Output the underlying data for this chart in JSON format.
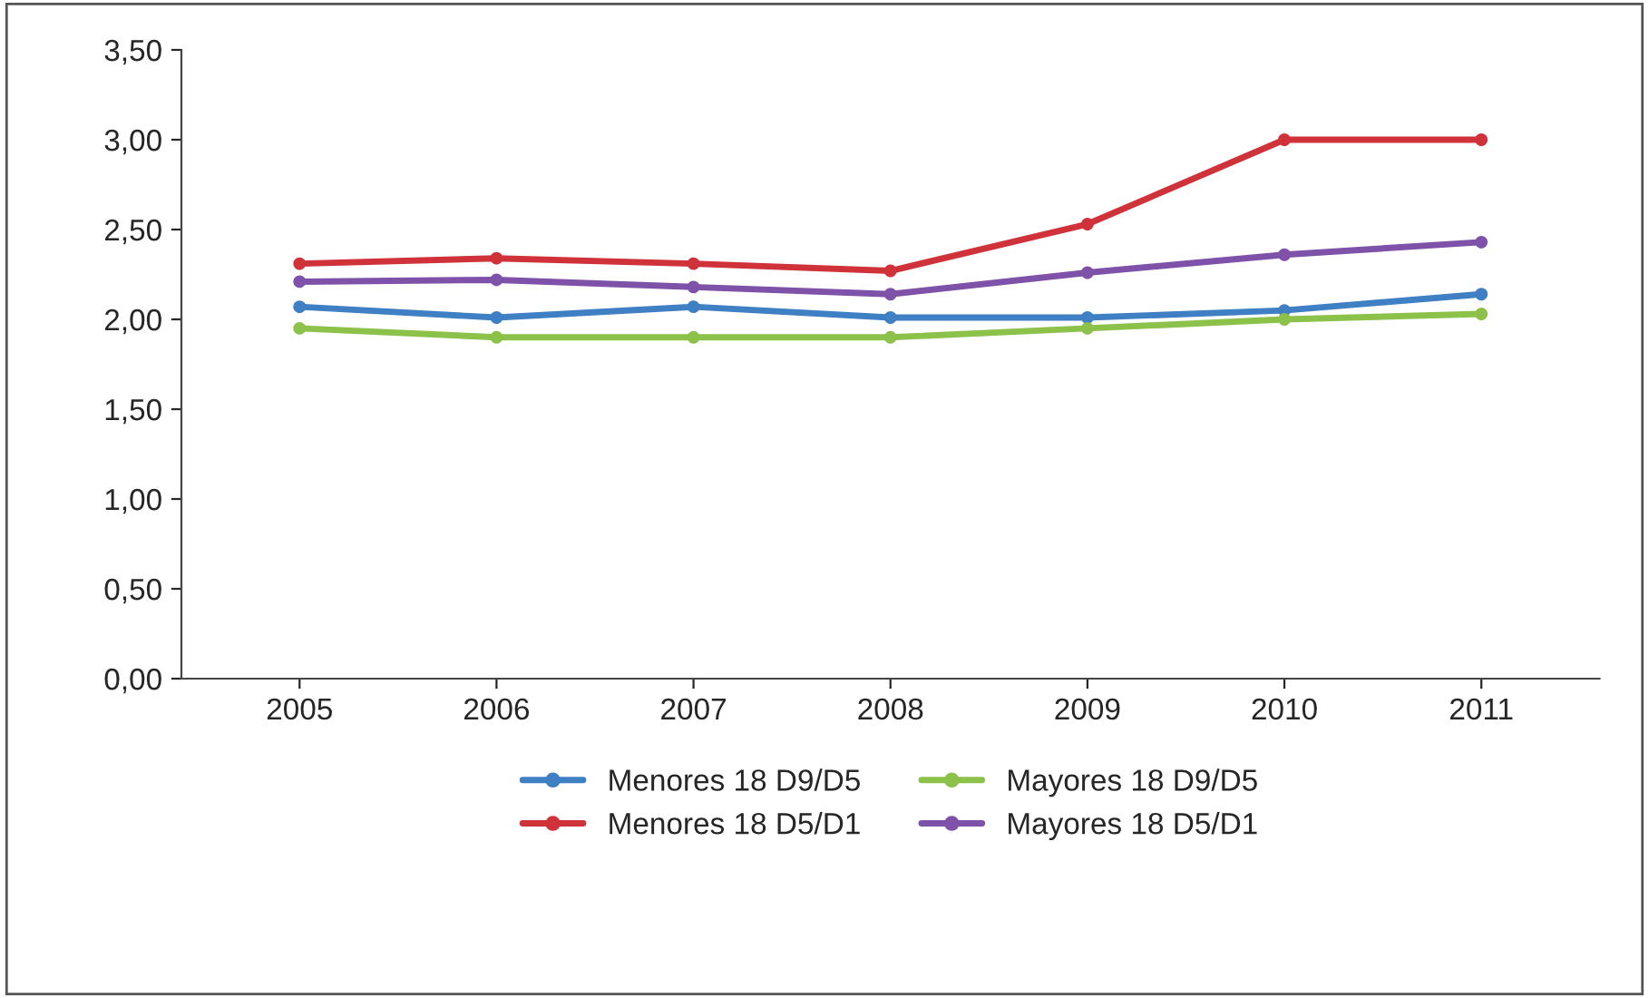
{
  "chart_data": {
    "type": "line",
    "categories": [
      "2005",
      "2006",
      "2007",
      "2008",
      "2009",
      "2010",
      "2011"
    ],
    "series": [
      {
        "name": "Menores 18 D9/D5",
        "color": "#3f7fc4",
        "values": [
          2.07,
          2.01,
          2.07,
          2.01,
          2.01,
          2.05,
          2.14
        ]
      },
      {
        "name": "Menores 18 D5/D1",
        "color": "#d0323a",
        "values": [
          2.31,
          2.34,
          2.31,
          2.27,
          2.53,
          3.0,
          3.0
        ]
      },
      {
        "name": "Mayores 18 D9/D5",
        "color": "#8cc14a",
        "values": [
          1.95,
          1.9,
          1.9,
          1.9,
          1.95,
          2.0,
          2.03
        ]
      },
      {
        "name": "Mayores 18 D5/D1",
        "color": "#7e52a8",
        "values": [
          2.21,
          2.22,
          2.18,
          2.14,
          2.26,
          2.36,
          2.43
        ]
      }
    ],
    "ylim": [
      0,
      3.5
    ],
    "yticks": [
      {
        "value": 0,
        "label": "0,00"
      },
      {
        "value": 0.5,
        "label": "0,50"
      },
      {
        "value": 1,
        "label": "1,00"
      },
      {
        "value": 1.5,
        "label": "1,50"
      },
      {
        "value": 2,
        "label": "2,00"
      },
      {
        "value": 2.5,
        "label": "2,50"
      },
      {
        "value": 3,
        "label": "3,00"
      },
      {
        "value": 3.5,
        "label": "3,50"
      }
    ],
    "grid": false,
    "legend": "bottom",
    "marker": "circle",
    "line_style": "solid"
  }
}
